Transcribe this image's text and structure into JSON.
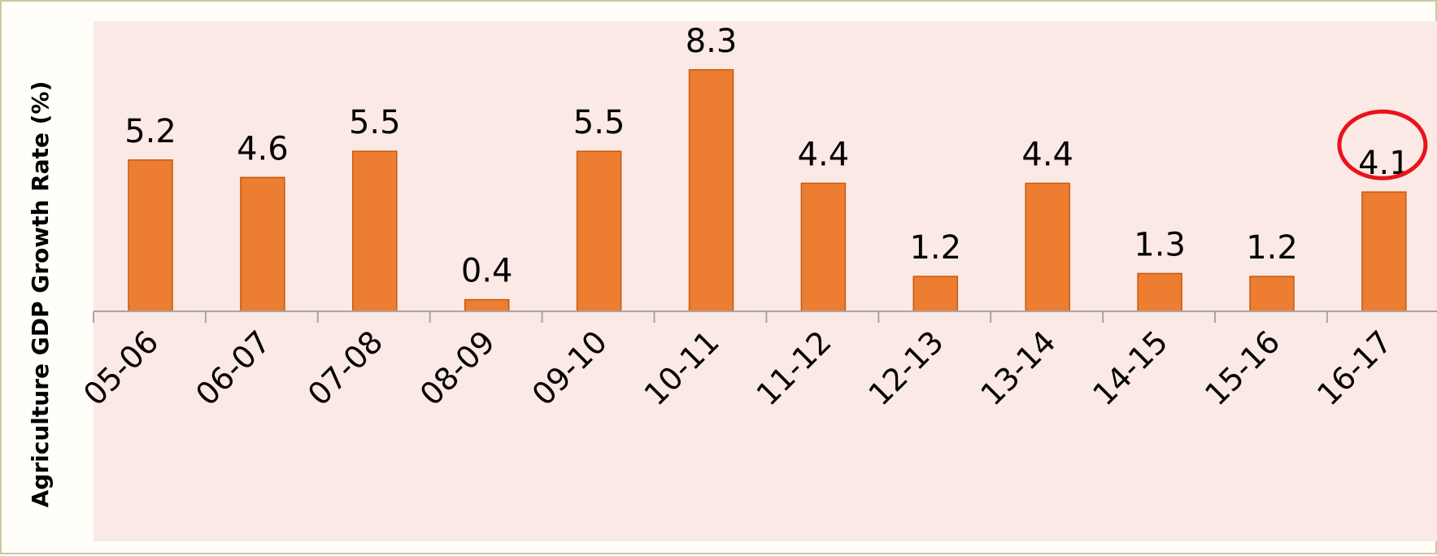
{
  "chart_data": {
    "type": "bar",
    "title": "",
    "xlabel": "",
    "ylabel": "Agriculture GDP Growth Rate (%)",
    "categories": [
      "05-06",
      "06-07",
      "07-08",
      "08-09",
      "09-10",
      "10-11",
      "11-12",
      "12-13",
      "13-14",
      "14-15",
      "15-16",
      "16-17"
    ],
    "values": [
      5.2,
      4.6,
      5.5,
      0.4,
      5.5,
      8.3,
      4.4,
      1.2,
      4.4,
      1.3,
      1.2,
      4.1
    ],
    "data_labels": [
      "5.2",
      "4.6",
      "5.5",
      "0.4",
      "5.5",
      "8.3",
      "4.4",
      "1.2",
      "4.4",
      "1.3",
      "1.2",
      "4.1"
    ],
    "highlighted_category": "16-17",
    "grid": false,
    "legend": "none",
    "colors": {
      "bar": "#ed7d31",
      "bar_edge": "#c55a11",
      "plot_background": "#fbe9e5",
      "highlight_circle": "#e8141b",
      "axis": "#a6a6a6"
    }
  }
}
